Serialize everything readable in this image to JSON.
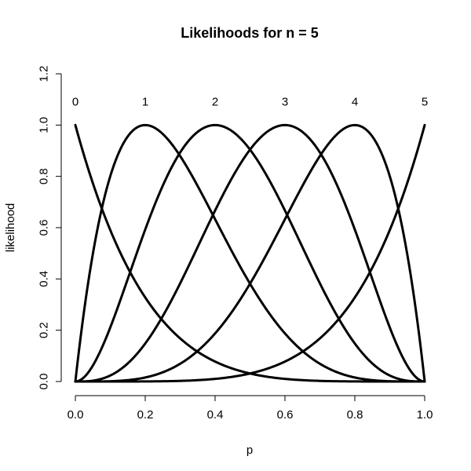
{
  "chart_data": {
    "type": "line",
    "title": "Likelihoods for n =  5",
    "xlabel": "p",
    "ylabel": "likelihood",
    "xlim": [
      0.0,
      1.0
    ],
    "ylim": [
      0.0,
      1.2
    ],
    "x_ticks": [
      0.0,
      0.2,
      0.4,
      0.6,
      0.8,
      1.0
    ],
    "x_tick_labels": [
      "0.0",
      "0.2",
      "0.4",
      "0.6",
      "0.8",
      "1.0"
    ],
    "y_ticks": [
      0.0,
      0.2,
      0.4,
      0.6,
      0.8,
      1.0,
      1.2
    ],
    "y_tick_labels": [
      "0.0",
      "0.2",
      "0.4",
      "0.6",
      "0.8",
      "1.0",
      "1.2"
    ],
    "grid": false,
    "n": 5,
    "series": [
      {
        "label": "0",
        "k": 0,
        "label_x": 0.0,
        "label_y": 1.09
      },
      {
        "label": "1",
        "k": 1,
        "label_x": 0.2,
        "label_y": 1.09
      },
      {
        "label": "2",
        "k": 2,
        "label_x": 0.4,
        "label_y": 1.09
      },
      {
        "label": "3",
        "k": 3,
        "label_x": 0.6,
        "label_y": 1.09
      },
      {
        "label": "4",
        "k": 4,
        "label_x": 0.8,
        "label_y": 1.09
      },
      {
        "label": "5",
        "k": 5,
        "label_x": 1.0,
        "label_y": 1.09
      }
    ]
  }
}
